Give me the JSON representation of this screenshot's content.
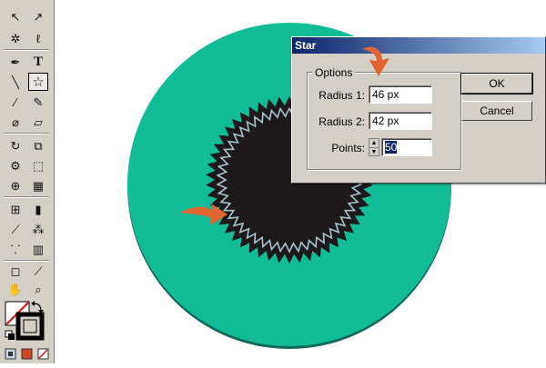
{
  "toolbar": {
    "tools": [
      {
        "name": "selection",
        "glyph": "↖"
      },
      {
        "name": "direct-selection",
        "glyph": "↗"
      },
      {
        "name": "magic-wand",
        "glyph": "✲"
      },
      {
        "name": "lasso",
        "glyph": "ℓ"
      },
      {
        "name": "pen",
        "glyph": "✒"
      },
      {
        "name": "type",
        "glyph": "T"
      },
      {
        "name": "line",
        "glyph": "╲"
      },
      {
        "name": "star",
        "glyph": "☆"
      },
      {
        "name": "paintbrush",
        "glyph": "∕"
      },
      {
        "name": "pencil",
        "glyph": "✎"
      },
      {
        "name": "blob-brush",
        "glyph": "⌀"
      },
      {
        "name": "eraser",
        "glyph": "▱"
      },
      {
        "name": "rotate",
        "glyph": "↻"
      },
      {
        "name": "scale",
        "glyph": "⧉"
      },
      {
        "name": "warp",
        "glyph": "⚙"
      },
      {
        "name": "free-transform",
        "glyph": "⬚"
      },
      {
        "name": "shape-builder",
        "glyph": "⊕"
      },
      {
        "name": "perspective-grid",
        "glyph": "▦"
      },
      {
        "name": "mesh",
        "glyph": "⊞"
      },
      {
        "name": "gradient",
        "glyph": "▮"
      },
      {
        "name": "eyedropper",
        "glyph": "⟋"
      },
      {
        "name": "blend",
        "glyph": "⁂"
      },
      {
        "name": "symbol-sprayer",
        "glyph": "⸪"
      },
      {
        "name": "column-graph",
        "glyph": "▥"
      },
      {
        "name": "artboard",
        "glyph": "◻"
      },
      {
        "name": "slice",
        "glyph": "⟋"
      },
      {
        "name": "hand",
        "glyph": "✋"
      },
      {
        "name": "zoom",
        "glyph": "⌕"
      }
    ]
  },
  "colors": {
    "canvas_circle": "#12bc97",
    "dark_star": "#1d191b",
    "zigzag": "#a9c4cf",
    "arrow": "#e06530",
    "swatch_fill": "#ffffff",
    "swatch_stroke": "#000000"
  },
  "dialog": {
    "title": "Star",
    "options_label": "Options",
    "radius1_label": "Radius 1:",
    "radius1_value": "46 px",
    "radius2_label": "Radius 2:",
    "radius2_value": "42 px",
    "points_label": "Points:",
    "points_value": "50",
    "ok_label": "OK",
    "cancel_label": "Cancel"
  }
}
